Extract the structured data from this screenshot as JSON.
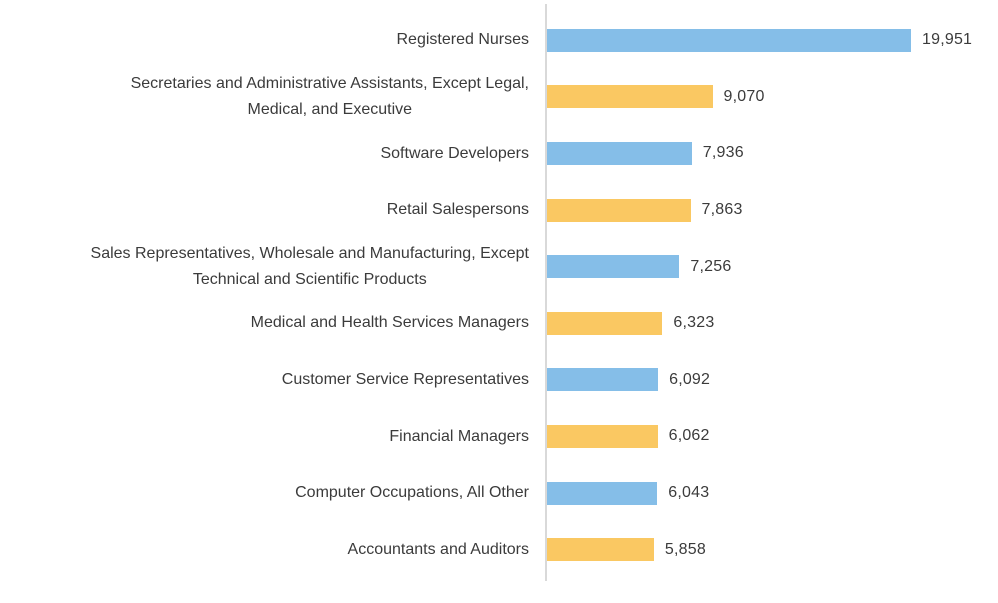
{
  "chart_data": {
    "type": "bar",
    "orientation": "horizontal",
    "title": "",
    "xlabel": "",
    "ylabel": "",
    "xlim": [
      0,
      20500
    ],
    "grid": false,
    "legend": "none",
    "categories": [
      "Registered Nurses",
      "Secretaries and Administrative Assistants, Except Legal,\nMedical, and Executive",
      "Software Developers",
      "Retail Salespersons",
      "Sales Representatives, Wholesale and Manufacturing, Except\nTechnical and Scientific Products",
      "Medical and Health Services Managers",
      "Customer Service Representatives",
      "Financial Managers",
      "Computer Occupations, All Other",
      "Accountants and Auditors"
    ],
    "values": [
      19951,
      9070,
      7936,
      7863,
      7256,
      6323,
      6092,
      6062,
      6043,
      5858
    ],
    "value_labels": [
      "19,951",
      "9,070",
      "7,936",
      "7,863",
      "7,256",
      "6,323",
      "6,092",
      "6,062",
      "6,043",
      "5,858"
    ],
    "bar_colors": [
      "#85BEE8",
      "#FAC862",
      "#85BEE8",
      "#FAC862",
      "#85BEE8",
      "#FAC862",
      "#85BEE8",
      "#FAC862",
      "#85BEE8",
      "#FAC862"
    ]
  },
  "style": {
    "bar_color_blue": "#85BEE8",
    "bar_color_yellow": "#FAC862",
    "axis_line_color": "#D9D9D9",
    "text_color": "#3B3B3B",
    "background": "#FFFFFF"
  }
}
